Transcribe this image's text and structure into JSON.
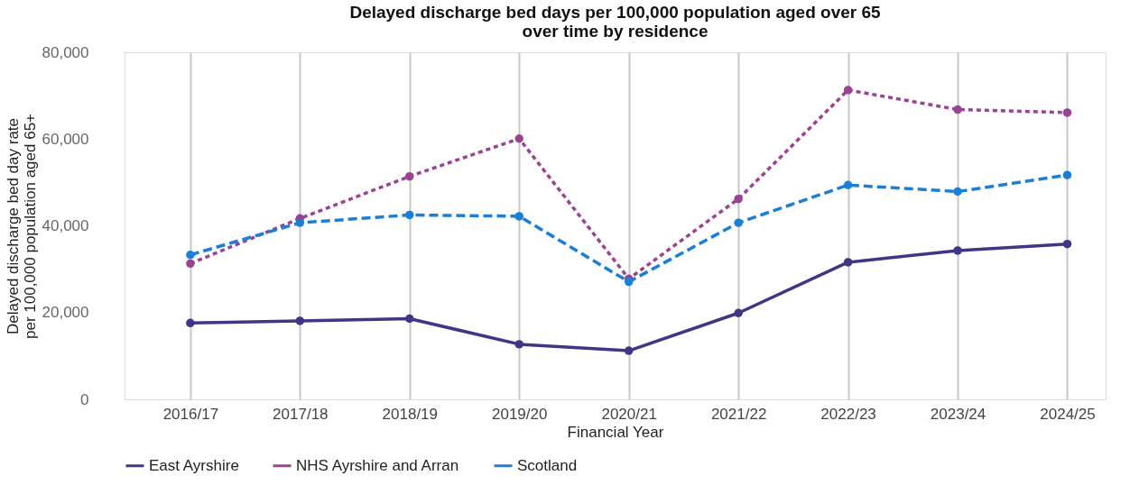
{
  "chart_data": {
    "type": "line",
    "title": "Delayed discharge bed days per 100,000 population aged over 65 over time by residence",
    "xlabel": "Financial Year",
    "ylabel": "Delayed discharge bed day rate per 100,000 population aged 65+",
    "categories": [
      "2016/17",
      "2017/18",
      "2018/19",
      "2019/20",
      "2020/21",
      "2021/22",
      "2022/23",
      "2023/24",
      "2024/25"
    ],
    "series": [
      {
        "name": "East Ayrshire",
        "color": "#3f3685",
        "line_style": "solid",
        "values": [
          17600,
          18100,
          18600,
          12700,
          11200,
          19900,
          31600,
          34300,
          35800
        ]
      },
      {
        "name": "NHS Ayrshire and Arran",
        "color": "#9b4393",
        "line_style": "dotted",
        "values": [
          31300,
          41700,
          51400,
          60100,
          27800,
          46200,
          71300,
          66800,
          66100
        ]
      },
      {
        "name": "Scotland",
        "color": "#1b7fd6",
        "line_style": "dashed",
        "values": [
          33300,
          40700,
          42500,
          42200,
          27100,
          40700,
          49400,
          47900,
          51700
        ]
      }
    ],
    "ylim": [
      0,
      80000
    ],
    "yticks": [
      0,
      {
        "value": 20000,
        "label": "20,000"
      },
      {
        "value": 40000,
        "label": "40,000"
      },
      {
        "value": 60000,
        "label": "60,000"
      },
      {
        "value": 80000,
        "label": "80,000"
      }
    ],
    "grid": "x",
    "legend": "bottom",
    "marker": "circle"
  }
}
